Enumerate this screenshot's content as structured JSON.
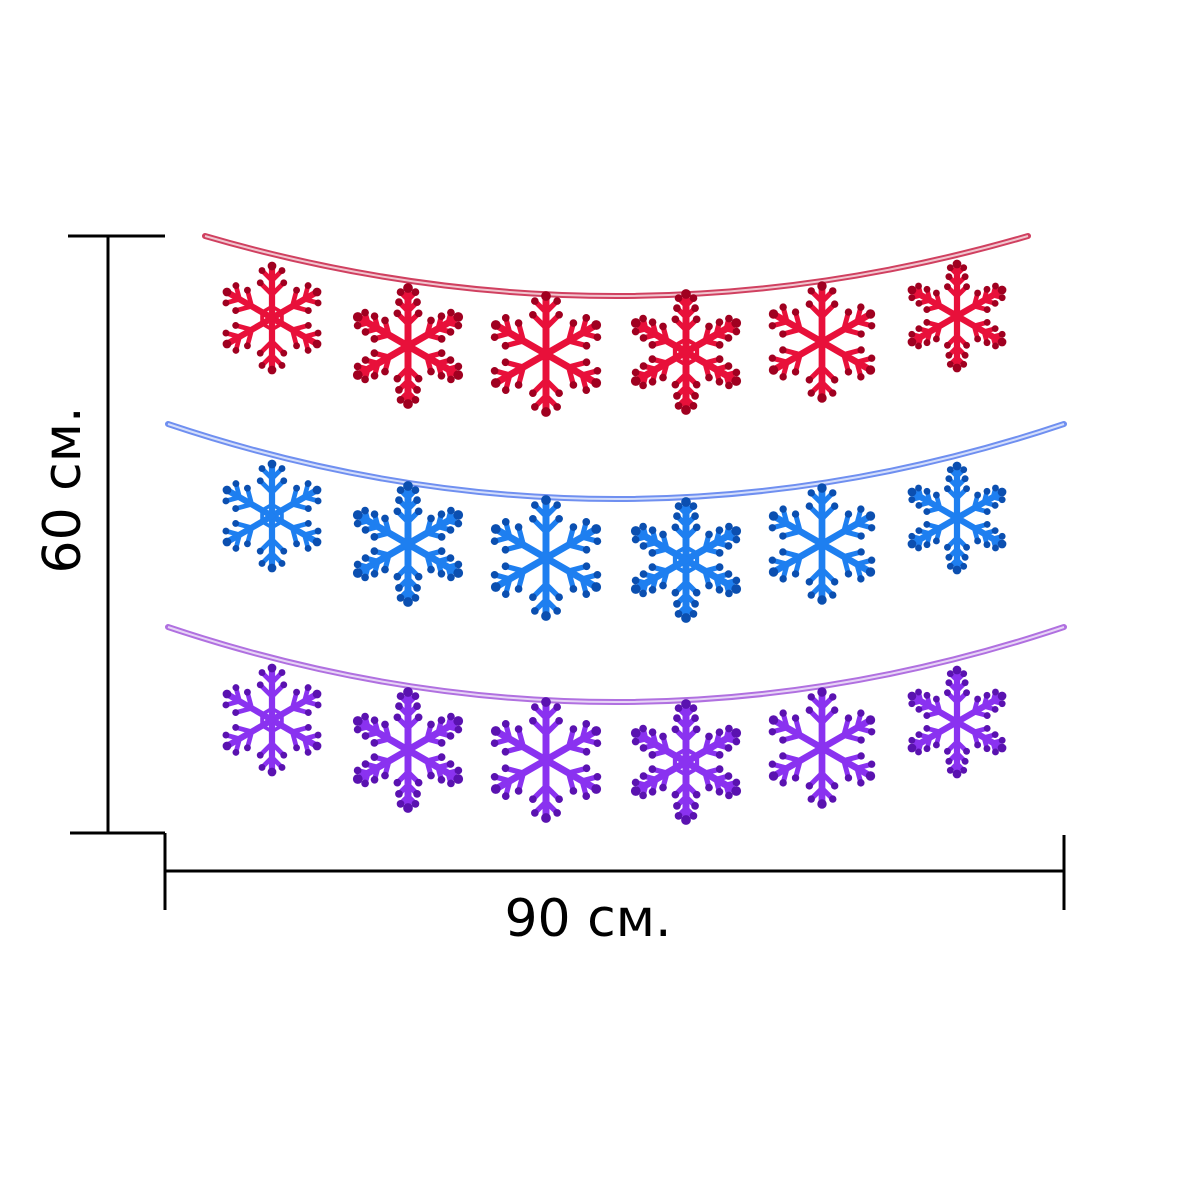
{
  "dimensions": {
    "height_label": "60 см.",
    "width_label": "90 см."
  },
  "garlands": [
    {
      "color": "#e8103a",
      "dark": "#a00020",
      "string": "#d04060",
      "count": 6
    },
    {
      "color": "#1e7ff0",
      "dark": "#0b4fb0",
      "string": "#6f8ff0",
      "count": 6
    },
    {
      "color": "#8a32f0",
      "dark": "#5a12b0",
      "string": "#b070e0",
      "count": 6
    }
  ],
  "dimension_line_color": "#000000"
}
